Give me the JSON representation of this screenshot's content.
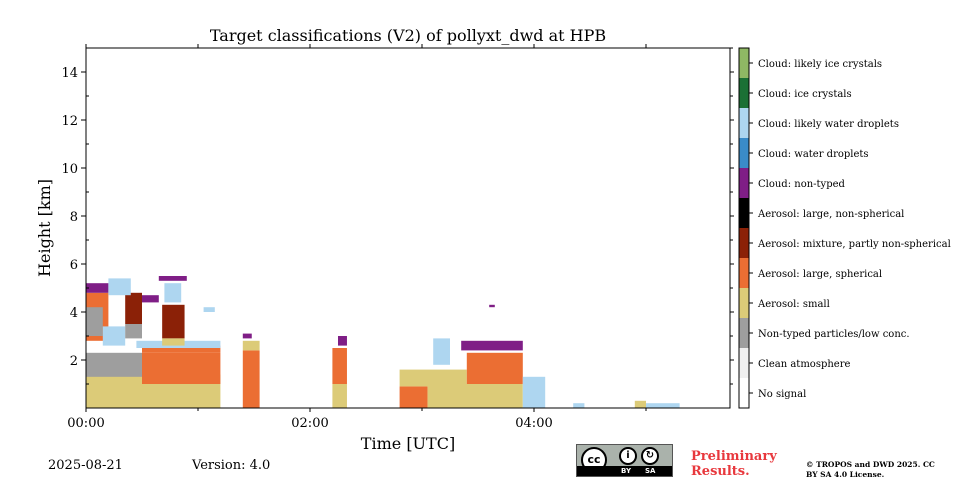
{
  "chart_data": {
    "type": "heatmap",
    "title": "Target classifications (V2) of pollyxt_dwd at HPB",
    "xlabel": "Time [UTC]",
    "ylabel": "Height [km]",
    "xlim_hours": [
      0,
      5.75
    ],
    "ylim_km": [
      0,
      15
    ],
    "x_ticks": [
      {
        "value": 0,
        "label": "00:00"
      },
      {
        "value": 2,
        "label": "02:00"
      },
      {
        "value": 4,
        "label": "04:00"
      }
    ],
    "y_ticks": [
      {
        "value": 2,
        "label": "2"
      },
      {
        "value": 4,
        "label": "4"
      },
      {
        "value": 6,
        "label": "6"
      },
      {
        "value": 8,
        "label": "8"
      },
      {
        "value": 10,
        "label": "10"
      },
      {
        "value": 12,
        "label": "12"
      },
      {
        "value": 14,
        "label": "14"
      }
    ],
    "classes": [
      {
        "name": "No signal",
        "color": "#ffffff"
      },
      {
        "name": "Clean atmosphere",
        "color": "#f0f0f0"
      },
      {
        "name": "Non-typed particles/low conc.",
        "color": "#9e9e9e"
      },
      {
        "name": "Aerosol: small",
        "color": "#dccb78"
      },
      {
        "name": "Aerosol: large, spherical",
        "color": "#eb6e33"
      },
      {
        "name": "Aerosol: mixture, partly non-spherical",
        "color": "#8b2107"
      },
      {
        "name": "Aerosol: large, non-spherical",
        "color": "#000000"
      },
      {
        "name": "Cloud: non-typed",
        "color": "#7f1e86"
      },
      {
        "name": "Cloud: water droplets",
        "color": "#3a8bc8"
      },
      {
        "name": "Cloud: likely water droplets",
        "color": "#aed6f0"
      },
      {
        "name": "Cloud: ice crystals",
        "color": "#1b7035"
      },
      {
        "name": "Cloud: likely ice crystals",
        "color": "#8fb864"
      }
    ],
    "regions": [
      {
        "cls": 3,
        "t0": 0.0,
        "t1": 1.2,
        "h0": 0.0,
        "h1": 1.4
      },
      {
        "cls": 2,
        "t0": 0.0,
        "t1": 0.5,
        "h0": 1.3,
        "h1": 2.3
      },
      {
        "cls": 4,
        "t0": 0.5,
        "t1": 1.2,
        "h0": 1.0,
        "h1": 2.3
      },
      {
        "cls": 4,
        "t0": 0.0,
        "t1": 0.2,
        "h0": 2.8,
        "h1": 4.8
      },
      {
        "cls": 2,
        "t0": 0.0,
        "t1": 0.15,
        "h0": 3.0,
        "h1": 4.2
      },
      {
        "cls": 9,
        "t0": 0.15,
        "t1": 0.35,
        "h0": 2.6,
        "h1": 3.4
      },
      {
        "cls": 5,
        "t0": 0.35,
        "t1": 0.5,
        "h0": 3.5,
        "h1": 4.8
      },
      {
        "cls": 2,
        "t0": 0.35,
        "t1": 0.5,
        "h0": 2.9,
        "h1": 3.5
      },
      {
        "cls": 4,
        "t0": 0.5,
        "t1": 1.2,
        "h0": 2.3,
        "h1": 2.6
      },
      {
        "cls": 9,
        "t0": 0.45,
        "t1": 1.2,
        "h0": 2.5,
        "h1": 2.8
      },
      {
        "cls": 5,
        "t0": 0.68,
        "t1": 0.88,
        "h0": 2.9,
        "h1": 4.3
      },
      {
        "cls": 3,
        "t0": 0.68,
        "t1": 0.88,
        "h0": 2.6,
        "h1": 2.9
      },
      {
        "cls": 7,
        "t0": 0.0,
        "t1": 0.2,
        "h0": 4.8,
        "h1": 5.2
      },
      {
        "cls": 9,
        "t0": 0.2,
        "t1": 0.4,
        "h0": 4.7,
        "h1": 5.4
      },
      {
        "cls": 7,
        "t0": 0.5,
        "t1": 0.65,
        "h0": 4.4,
        "h1": 4.7
      },
      {
        "cls": 7,
        "t0": 0.65,
        "t1": 0.9,
        "h0": 5.3,
        "h1": 5.5
      },
      {
        "cls": 9,
        "t0": 0.7,
        "t1": 0.85,
        "h0": 4.4,
        "h1": 5.2
      },
      {
        "cls": 9,
        "t0": 1.05,
        "t1": 1.15,
        "h0": 4.0,
        "h1": 4.2
      },
      {
        "cls": 4,
        "t0": 1.4,
        "t1": 1.55,
        "h0": 0.0,
        "h1": 2.4
      },
      {
        "cls": 3,
        "t0": 1.4,
        "t1": 1.55,
        "h0": 2.4,
        "h1": 2.8
      },
      {
        "cls": 7,
        "t0": 1.4,
        "t1": 1.48,
        "h0": 2.9,
        "h1": 3.1
      },
      {
        "cls": 3,
        "t0": 2.2,
        "t1": 2.33,
        "h0": 0.0,
        "h1": 1.0
      },
      {
        "cls": 4,
        "t0": 2.2,
        "t1": 2.33,
        "h0": 1.0,
        "h1": 2.5
      },
      {
        "cls": 7,
        "t0": 2.25,
        "t1": 2.33,
        "h0": 2.6,
        "h1": 3.0
      },
      {
        "cls": 4,
        "t0": 2.8,
        "t1": 3.05,
        "h0": 0.0,
        "h1": 0.9
      },
      {
        "cls": 3,
        "t0": 2.8,
        "t1": 3.4,
        "h0": 0.9,
        "h1": 1.6
      },
      {
        "cls": 3,
        "t0": 3.05,
        "t1": 3.9,
        "h0": 0.0,
        "h1": 1.0
      },
      {
        "cls": 4,
        "t0": 3.4,
        "t1": 3.9,
        "h0": 1.0,
        "h1": 2.3
      },
      {
        "cls": 9,
        "t0": 3.1,
        "t1": 3.25,
        "h0": 1.8,
        "h1": 2.9
      },
      {
        "cls": 7,
        "t0": 3.35,
        "t1": 3.9,
        "h0": 2.4,
        "h1": 2.8
      },
      {
        "cls": 9,
        "t0": 3.9,
        "t1": 4.1,
        "h0": 0.0,
        "h1": 1.3
      },
      {
        "cls": 7,
        "t0": 3.6,
        "t1": 3.65,
        "h0": 4.2,
        "h1": 4.3
      },
      {
        "cls": 9,
        "t0": 4.35,
        "t1": 4.45,
        "h0": 0.0,
        "h1": 0.2
      },
      {
        "cls": 3,
        "t0": 4.9,
        "t1": 5.0,
        "h0": 0.0,
        "h1": 0.3
      },
      {
        "cls": 9,
        "t0": 5.0,
        "t1": 5.3,
        "h0": 0.0,
        "h1": 0.2
      }
    ]
  },
  "footer": {
    "date": "2025-08-21",
    "version": "Version: 4.0",
    "preliminary": "Preliminary Results.",
    "copyright": "© TROPOS and DWD 2025. CC BY SA 4.0 License.",
    "license_badge": {
      "cc": "cc",
      "by": "BY",
      "sa": "SA"
    }
  }
}
